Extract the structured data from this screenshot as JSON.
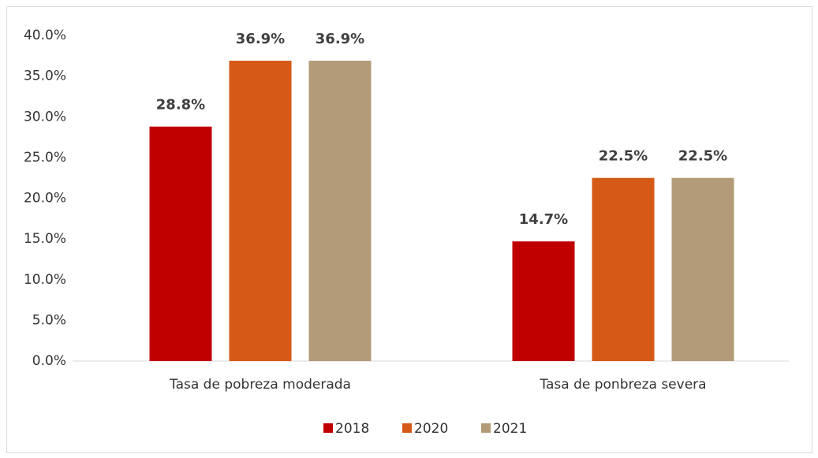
{
  "chart_data": {
    "type": "bar",
    "categories": [
      "Tasa de pobreza moderada",
      "Tasa de ponbreza severa"
    ],
    "series": [
      {
        "name": "2018",
        "color": "#c00000",
        "values": [
          28.8,
          14.7
        ],
        "value_labels": [
          "28.8%",
          "14.7%"
        ]
      },
      {
        "name": "2020",
        "color": "#d55a17",
        "values": [
          36.9,
          22.5
        ],
        "value_labels": [
          "36.9%",
          "22.5%"
        ]
      },
      {
        "name": "2021",
        "color": "#b39b7a",
        "values": [
          36.9,
          22.5
        ],
        "value_labels": [
          "36.9%",
          "22.5%"
        ]
      }
    ],
    "ylim": [
      0,
      40
    ],
    "yticks": [
      {
        "value": 0,
        "label": "0.0%"
      },
      {
        "value": 5,
        "label": "5.0%"
      },
      {
        "value": 10,
        "label": "10.0%"
      },
      {
        "value": 15,
        "label": "15.0%"
      },
      {
        "value": 20,
        "label": "20.0%"
      },
      {
        "value": 25,
        "label": "25.0%"
      },
      {
        "value": 30,
        "label": "30.0%"
      },
      {
        "value": 35,
        "label": "35.0%"
      },
      {
        "value": 40,
        "label": "40.0%"
      }
    ],
    "grid": false,
    "legend": "bottom"
  }
}
